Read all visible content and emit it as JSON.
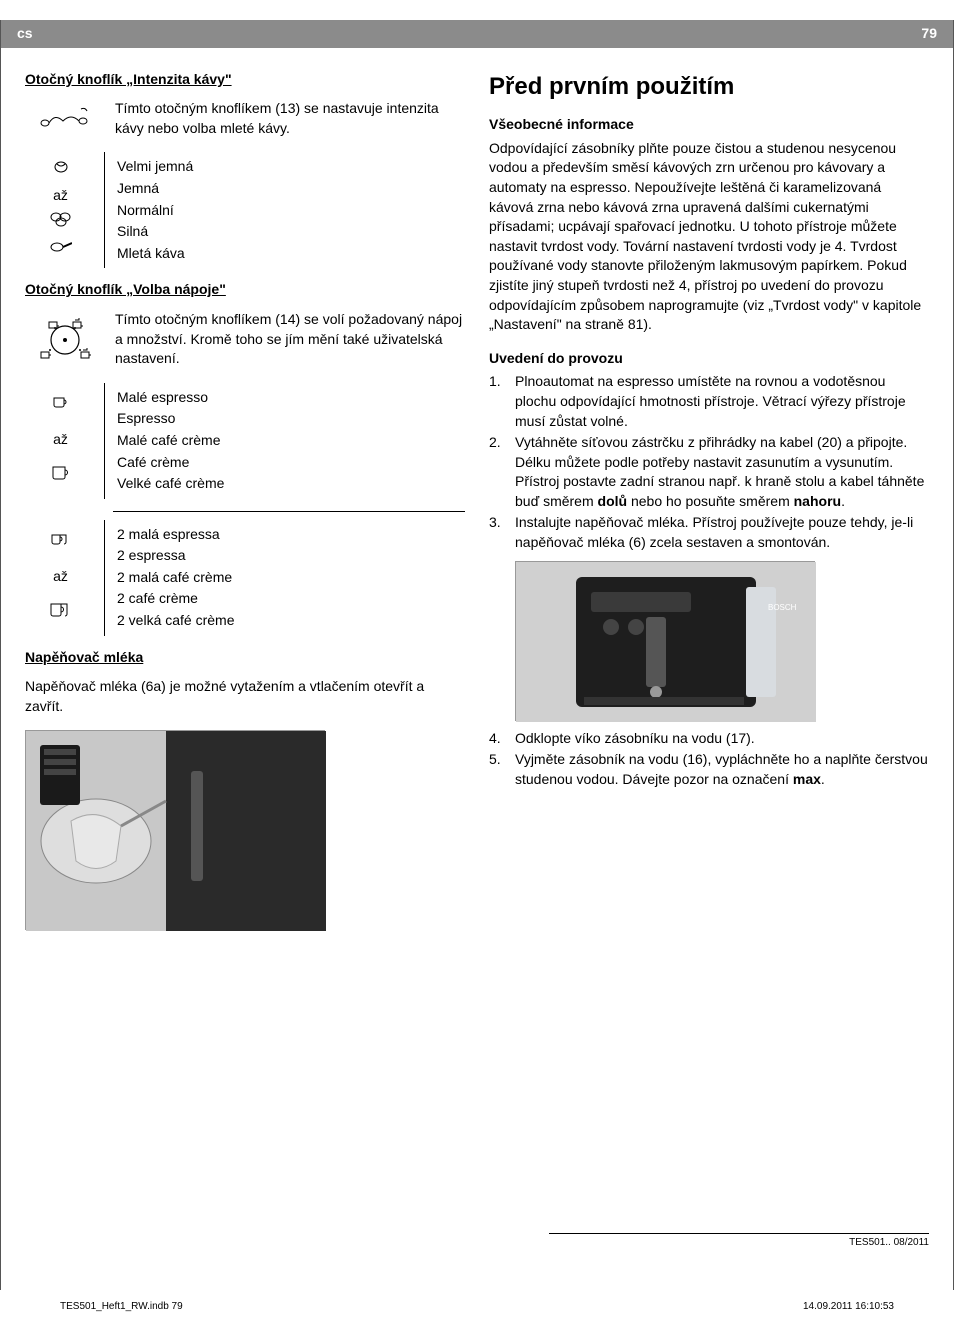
{
  "header": {
    "lang": "cs",
    "page_num": "79"
  },
  "left": {
    "section1_title": "Otočný knoflík „Intenzita kávy\"",
    "section1_text": "Tímto otočným knoflíkem (13) se nastavuje intenzita kávy nebo volba mleté kávy.",
    "intensity_middle": "až",
    "intensity_labels": [
      "Velmi jemná",
      "Jemná",
      "Normální",
      "Silná",
      "Mletá káva"
    ],
    "section2_title": "Otočný knoflík „Volba nápoje\"",
    "section2_text": "Tímto otočným knoflíkem (14) se volí požadovaný nápoj a množství. Kromě toho se jím mění také uživatelská nastavení.",
    "drinks1_middle": "až",
    "drinks1_labels": [
      "Malé espresso",
      "Espresso",
      "Malé café crème",
      "Café crème",
      "Velké café crème"
    ],
    "drinks2_middle": "až",
    "drinks2_labels": [
      "2 malá espressa",
      "2 espressa",
      "2 malá café crème",
      "2 café crème",
      "2 velká café crème"
    ],
    "frother_title": "Napěňovač mléka",
    "frother_text": "Napěňovač mléka (6a) je možné vytažením a vtlačením otevřít a zavřít."
  },
  "right": {
    "main_heading": "Před prvním použitím",
    "sub1_title": "Všeobecné informace",
    "sub1_text": "Odpovídající zásobníky plňte pouze čistou a studenou nesycenou vodou a především směsí kávových zrn určenou pro kávovary a automaty na espresso. Nepoužívejte leštěná či karamelizovaná kávová zrna nebo kávová zrna upravená dalšími cukernatými přísadami; ucpávají spařovací jednotku. U tohoto přístroje můžete nastavit tvrdost vody. Tovární nastavení tvrdosti vody je 4. Tvrdost používané vody stanovte přiloženým lakmusovým papírkem. Pokud zjistíte jiný stupeň tvrdosti než 4, přístroj po uvedení do provozu odpovídajícím způsobem naprogramujte (viz „Tvrdost vody\" v kapitole „Nastavení\" na straně 81).",
    "sub2_title": "Uvedení do provozu",
    "steps": [
      {
        "n": "1.",
        "t": "Plnoautomat na espresso umístěte na rovnou a vodotěsnou plochu odpovídající hmotnosti přístroje. Větrací výřezy přístroje musí zůstat volné."
      },
      {
        "n": "2.",
        "t": "Vytáhněte síťovou zástrčku z přihrádky na kabel (20) a připojte. Délku můžete podle potřeby nastavit zasunutím a vysunutím. Přístroj postavte zadní stranou např. k hraně stolu a kabel táhněte buď směrem <b>dolů</b> nebo ho posuňte směrem <b>nahoru</b>."
      },
      {
        "n": "3.",
        "t": "Instalujte napěňovač mléka. Přístroj používejte pouze tehdy, je-li napěňovač mléka (6) zcela sestaven a smontován."
      },
      {
        "n": "4.",
        "t": "Odklopte víko zásobníku na vodu (17)."
      },
      {
        "n": "5.",
        "t": "Vyjměte zásobník na vodu (16), vypláchněte ho a naplňte čerstvou studenou vodou. Dávejte pozor na označení <b>max</b>."
      }
    ]
  },
  "footer_model": "TES501..   08/2011",
  "bottom_left": "TES501_Heft1_RW.indb   79",
  "bottom_right": "14.09.2011   16:10:53",
  "colors": {
    "header_bg": "#8b8b8b",
    "border": "#555555",
    "text": "#000000"
  }
}
